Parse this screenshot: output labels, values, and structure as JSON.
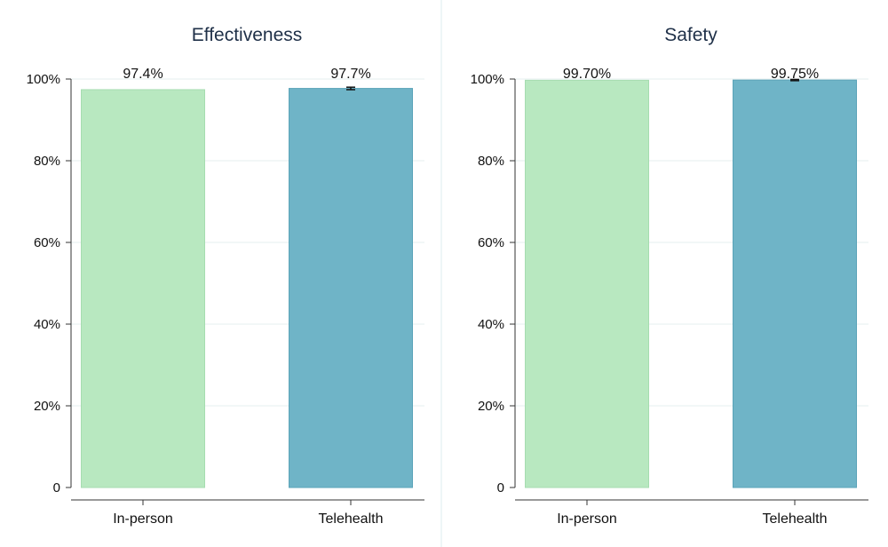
{
  "chart_data": [
    {
      "type": "bar",
      "title": "Effectiveness",
      "categories": [
        "In-person",
        "Telehealth"
      ],
      "values": [
        97.4,
        97.7
      ],
      "data_labels": [
        "97.4%",
        "97.7%"
      ],
      "error_bars": [
        null,
        {
          "low": 97.4,
          "high": 98.0
        }
      ],
      "colors": [
        "#b8e8c0",
        "#6fb4c7"
      ],
      "ylim": [
        0,
        100
      ],
      "yticks": [
        0,
        20,
        40,
        60,
        80,
        100
      ],
      "ytick_labels": [
        "0",
        "20%",
        "40%",
        "60%",
        "80%",
        "100%"
      ],
      "xlabel": "",
      "ylabel": "",
      "grid": true
    },
    {
      "type": "bar",
      "title": "Safety",
      "categories": [
        "In-person",
        "Telehealth"
      ],
      "values": [
        99.7,
        99.75
      ],
      "data_labels": [
        "99.70%",
        "99.75%"
      ],
      "error_bars": [
        null,
        {
          "low": 99.6,
          "high": 99.9
        }
      ],
      "colors": [
        "#b8e8c0",
        "#6fb4c7"
      ],
      "ylim": [
        0,
        100
      ],
      "yticks": [
        0,
        20,
        40,
        60,
        80,
        100
      ],
      "ytick_labels": [
        "0",
        "20%",
        "40%",
        "60%",
        "80%",
        "100%"
      ],
      "xlabel": "",
      "ylabel": "",
      "grid": true
    }
  ]
}
